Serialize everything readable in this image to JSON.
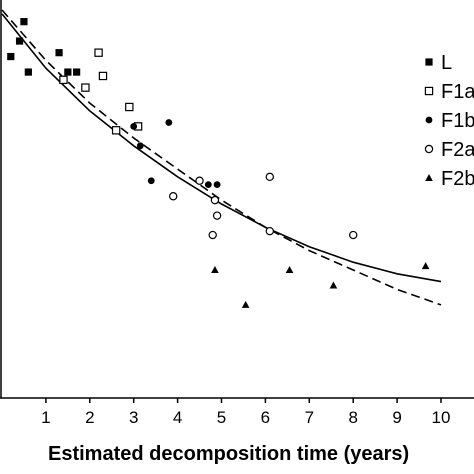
{
  "chart_data": {
    "type": "scatter",
    "xlabel": "Estimated decomposition time  (years)",
    "ylabel": "",
    "title": "",
    "xlim": [
      0,
      10
    ],
    "ylim": [
      0,
      1
    ],
    "x_ticks": [
      1,
      2,
      3,
      4,
      5,
      6,
      7,
      8,
      9,
      10
    ],
    "grid": false,
    "legend_position": "top-right",
    "series": [
      {
        "name": "L",
        "marker": "filled-square",
        "color": "#000000",
        "points": [
          [
            0.2,
            0.88
          ],
          [
            0.4,
            0.92
          ],
          [
            0.5,
            0.97
          ],
          [
            0.6,
            0.84
          ],
          [
            1.3,
            0.89
          ],
          [
            1.5,
            0.84
          ],
          [
            1.7,
            0.84
          ]
        ]
      },
      {
        "name": "F1a",
        "marker": "open-square",
        "color": "#000000",
        "points": [
          [
            1.4,
            0.82
          ],
          [
            1.9,
            0.8
          ],
          [
            2.2,
            0.89
          ],
          [
            2.3,
            0.83
          ],
          [
            2.6,
            0.69
          ],
          [
            2.9,
            0.75
          ],
          [
            3.1,
            0.7
          ]
        ]
      },
      {
        "name": "F1b",
        "marker": "filled-circle",
        "color": "#000000",
        "points": [
          [
            3.0,
            0.7
          ],
          [
            3.15,
            0.65
          ],
          [
            3.4,
            0.56
          ],
          [
            3.8,
            0.71
          ],
          [
            4.7,
            0.55
          ],
          [
            4.9,
            0.55
          ]
        ]
      },
      {
        "name": "F2a",
        "marker": "open-circle",
        "color": "#000000",
        "points": [
          [
            3.9,
            0.52
          ],
          [
            4.5,
            0.56
          ],
          [
            4.8,
            0.42
          ],
          [
            4.85,
            0.51
          ],
          [
            4.9,
            0.47
          ],
          [
            6.1,
            0.43
          ],
          [
            6.1,
            0.57
          ],
          [
            8.0,
            0.42
          ]
        ]
      },
      {
        "name": "F2b",
        "marker": "filled-triangle",
        "color": "#000000",
        "points": [
          [
            4.85,
            0.33
          ],
          [
            5.55,
            0.24
          ],
          [
            6.55,
            0.33
          ],
          [
            7.55,
            0.29
          ],
          [
            9.65,
            0.34
          ]
        ]
      }
    ],
    "fits": [
      {
        "style": "solid",
        "points": [
          [
            0,
            0.99
          ],
          [
            1,
            0.85
          ],
          [
            2,
            0.74
          ],
          [
            3,
            0.65
          ],
          [
            4,
            0.57
          ],
          [
            5,
            0.5
          ],
          [
            6,
            0.44
          ],
          [
            7,
            0.39
          ],
          [
            8,
            0.35
          ],
          [
            9,
            0.32
          ],
          [
            10,
            0.3
          ]
        ]
      },
      {
        "style": "dashed",
        "points": [
          [
            0,
            1.0
          ],
          [
            1,
            0.87
          ],
          [
            2,
            0.76
          ],
          [
            3,
            0.67
          ],
          [
            4,
            0.59
          ],
          [
            5,
            0.51
          ],
          [
            6,
            0.44
          ],
          [
            7,
            0.38
          ],
          [
            8,
            0.33
          ],
          [
            9,
            0.28
          ],
          [
            10,
            0.24
          ]
        ]
      }
    ]
  }
}
